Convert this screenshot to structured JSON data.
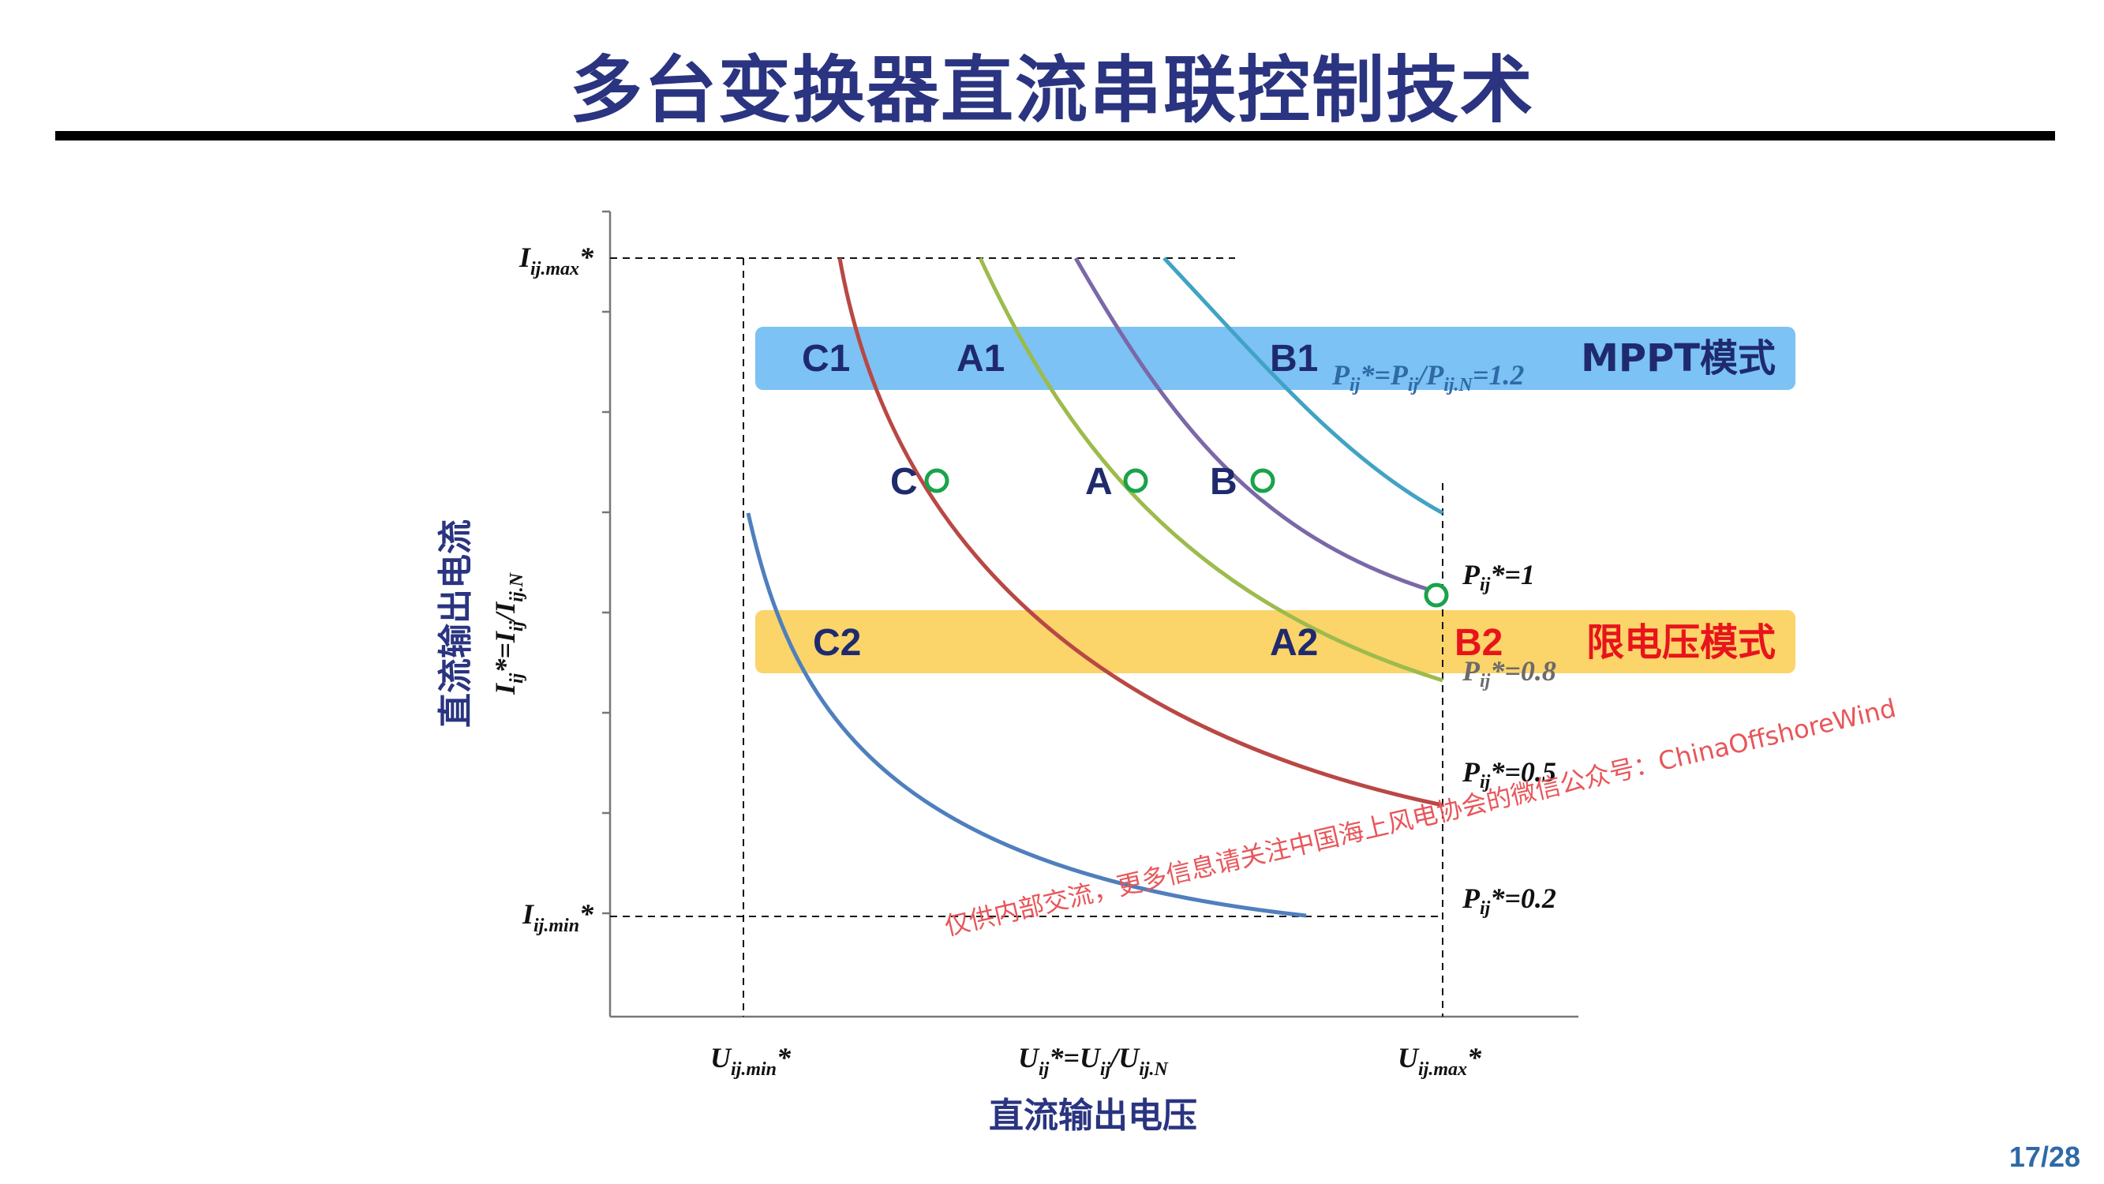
{
  "slide": {
    "title": "多台变换器直流串联控制技术",
    "page": "17/28"
  },
  "axes": {
    "x_title": "直流输出电压",
    "y_title": "直流输出电流",
    "x_formula": "U",
    "x_formula_sub": "ij",
    "x_formula_rest": "*=U",
    "x_formula_sub2": "ij",
    "x_formula_rest2": "/U",
    "x_formula_sub3": "ij.N",
    "y_formula": "I",
    "y_formula_sub": "ij",
    "y_formula_rest": "*=I",
    "y_formula_sub2": "ij",
    "y_formula_rest2": "/I",
    "y_formula_sub3": "ij.N",
    "x_min": {
      "main": "U",
      "sub": "ij.min",
      "star": "*"
    },
    "x_max": {
      "main": "U",
      "sub": "ij.max",
      "star": "*"
    },
    "y_max": {
      "main": "I",
      "sub": "ij.max",
      "star": "*"
    },
    "y_min": {
      "main": "I",
      "sub": "ij.min",
      "star": "*"
    }
  },
  "bands": {
    "mppt": {
      "label": "MPPT模式",
      "color": "#7cc2f4"
    },
    "limit": {
      "label": "限电压模式",
      "color": "#fbd46a"
    }
  },
  "band_points": {
    "C1": "C1",
    "A1": "A1",
    "B1": "B1",
    "C2": "C2",
    "A2": "A2",
    "B2": "B2"
  },
  "curves": [
    {
      "name": "P12",
      "main": "P",
      "sub": "ij",
      "rest": "*=P",
      "sub2": "ij",
      "rest2": "/P",
      "sub3": "ij.N",
      "rest3": "=1.2",
      "color": "#41a3c4"
    },
    {
      "name": "P1",
      "main": "P",
      "sub": "ij",
      "rest": "*=1",
      "color": "#7b68a8"
    },
    {
      "name": "P08",
      "main": "P",
      "sub": "ij",
      "rest": "*=0.8",
      "color": "#9dbb4c"
    },
    {
      "name": "P05",
      "main": "P",
      "sub": "ij",
      "rest": "*=0.5",
      "color": "#b94844"
    },
    {
      "name": "P02",
      "main": "P",
      "sub": "ij",
      "rest": "*=0.2",
      "color": "#4f7fbd"
    }
  ],
  "operating_points": {
    "C": "C",
    "A": "A",
    "B": "B"
  },
  "point_color": "#1aa34a",
  "watermark": "仅供内部交流，更多信息请关注中国海上风电协会的微信公众号：ChinaOffshoreWind"
}
